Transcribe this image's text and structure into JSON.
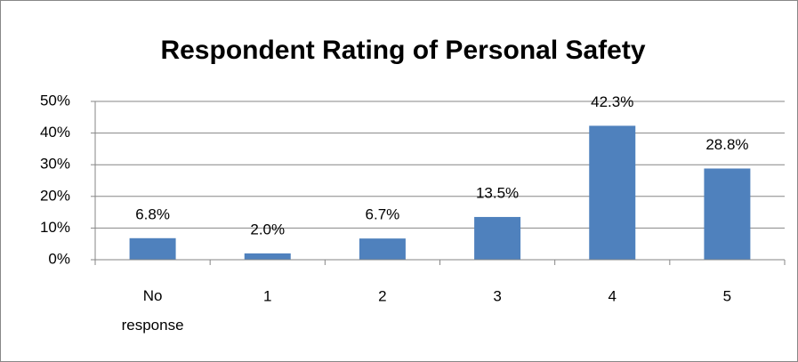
{
  "chart_data": {
    "type": "bar",
    "title": "Respondent Rating of Personal Safety",
    "categories": [
      "No response",
      "1",
      "2",
      "3",
      "4",
      "5"
    ],
    "values": [
      6.8,
      2.0,
      6.7,
      13.5,
      42.3,
      28.8
    ],
    "value_labels": [
      "6.8%",
      "2.0%",
      "6.7%",
      "13.5%",
      "42.3%",
      "28.8%"
    ],
    "color": "#4f81bd",
    "ylim": [
      0,
      50
    ],
    "yticks": [
      {
        "value": 0,
        "label": "0%"
      },
      {
        "value": 10,
        "label": "10%"
      },
      {
        "value": 20,
        "label": "20%"
      },
      {
        "value": 30,
        "label": "30%"
      },
      {
        "value": 40,
        "label": "40%"
      },
      {
        "value": 50,
        "label": "50%"
      }
    ],
    "grid": true
  }
}
